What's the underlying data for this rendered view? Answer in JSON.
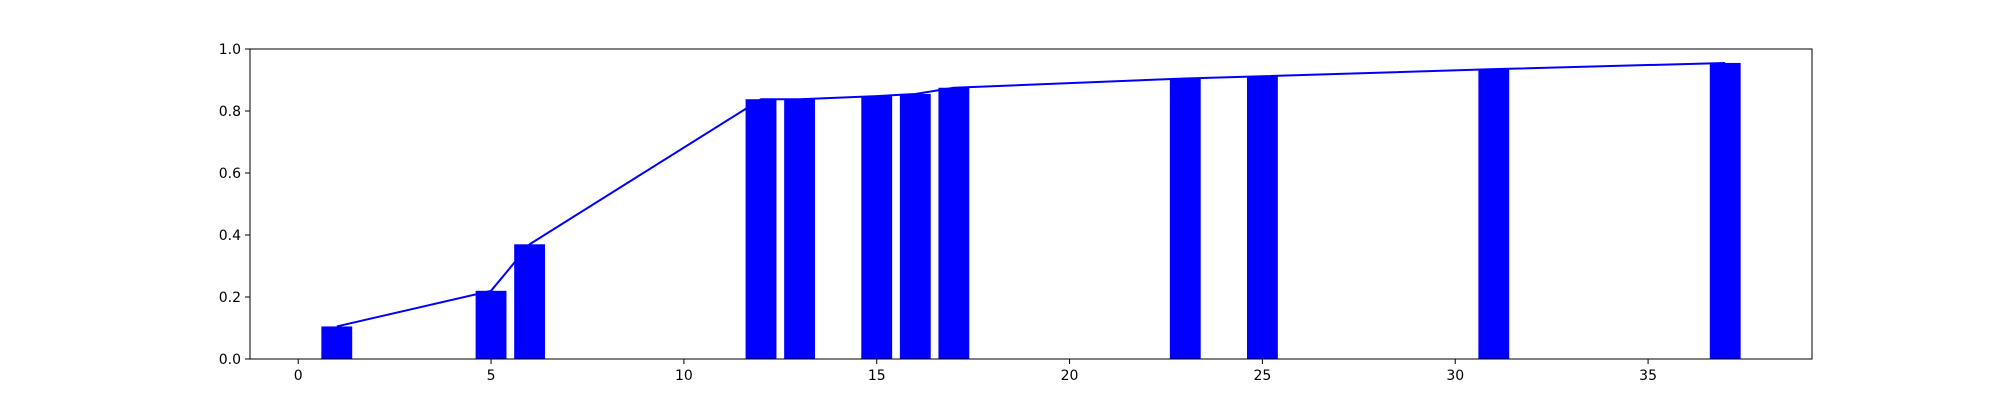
{
  "chart_data": {
    "type": "bar",
    "title": "",
    "xlabel": "",
    "ylabel": "",
    "xlim": [
      -1.25,
      39.25
    ],
    "ylim": [
      0.0,
      1.0
    ],
    "xticks": [
      0,
      5,
      10,
      15,
      20,
      25,
      30,
      35
    ],
    "xtick_labels": [
      "0",
      "5",
      "10",
      "15",
      "20",
      "25",
      "30",
      "35"
    ],
    "yticks": [
      0.0,
      0.2,
      0.4,
      0.6,
      0.8,
      1.0
    ],
    "ytick_labels": [
      "0.0",
      "0.2",
      "0.4",
      "0.6",
      "0.8",
      "1.0"
    ],
    "grid": false,
    "bar_width": 0.8,
    "colors": {
      "bar": "#0000ff",
      "line": "#0000ff",
      "axes": "#000000"
    },
    "series": [
      {
        "type": "bar",
        "x": [
          1,
          5,
          6,
          12,
          13,
          15,
          16,
          17,
          23,
          25,
          31,
          37
        ],
        "values": [
          0.105,
          0.22,
          0.37,
          0.838,
          0.838,
          0.848,
          0.855,
          0.875,
          0.905,
          0.912,
          0.935,
          0.955
        ]
      },
      {
        "type": "line",
        "x": [
          1,
          5,
          6,
          12,
          13,
          15,
          16,
          17,
          23,
          25,
          31,
          37
        ],
        "values": [
          0.105,
          0.22,
          0.37,
          0.838,
          0.838,
          0.848,
          0.855,
          0.875,
          0.905,
          0.912,
          0.935,
          0.955
        ]
      }
    ]
  }
}
